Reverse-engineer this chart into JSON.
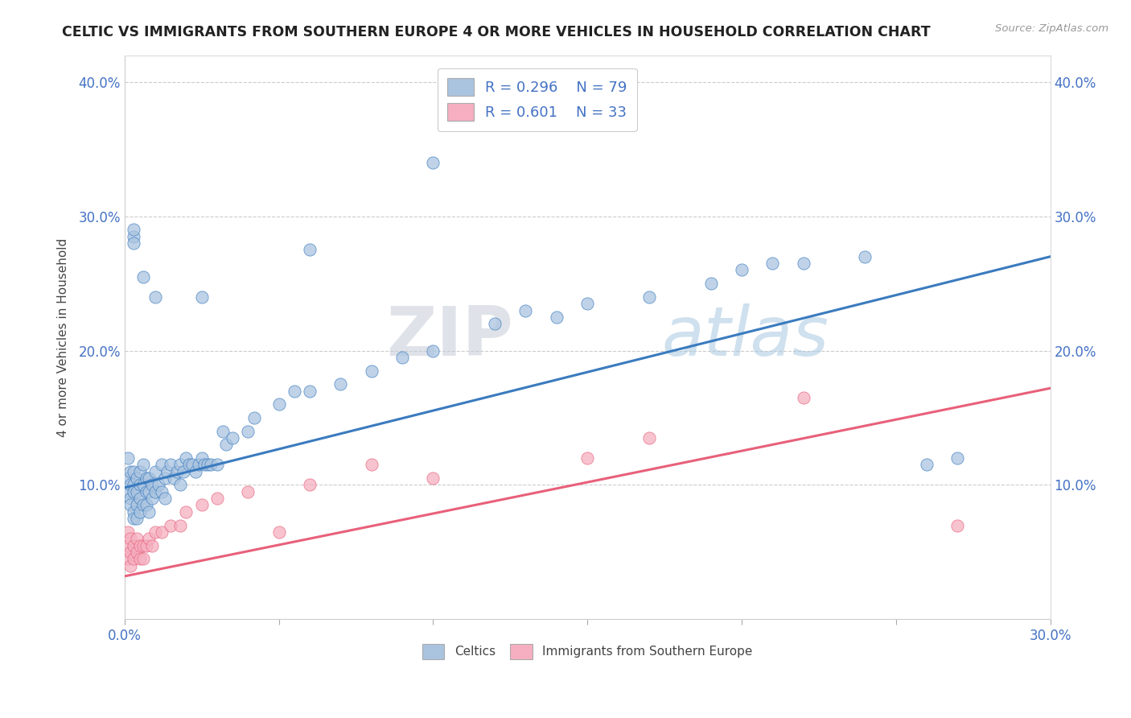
{
  "title": "CELTIC VS IMMIGRANTS FROM SOUTHERN EUROPE 4 OR MORE VEHICLES IN HOUSEHOLD CORRELATION CHART",
  "source": "Source: ZipAtlas.com",
  "ylabel": "4 or more Vehicles in Household",
  "xmin": 0.0,
  "xmax": 0.3,
  "ymin": 0.0,
  "ymax": 0.42,
  "celtics_color": "#aac4e0",
  "immigrants_color": "#f5afc0",
  "celtics_line_color": "#3a7bbf",
  "immigrants_line_color": "#e8607a",
  "watermark_zip": "ZIP",
  "watermark_atlas": "atlas",
  "legend_label_1": "Celtics",
  "legend_label_2": "Immigrants from Southern Europe",
  "celtics_x": [
    0.001,
    0.001,
    0.001,
    0.002,
    0.002,
    0.002,
    0.002,
    0.003,
    0.003,
    0.003,
    0.003,
    0.003,
    0.004,
    0.004,
    0.004,
    0.004,
    0.005,
    0.005,
    0.005,
    0.005,
    0.006,
    0.006,
    0.006,
    0.007,
    0.007,
    0.007,
    0.008,
    0.008,
    0.008,
    0.009,
    0.009,
    0.01,
    0.01,
    0.011,
    0.012,
    0.012,
    0.013,
    0.013,
    0.014,
    0.015,
    0.016,
    0.017,
    0.018,
    0.018,
    0.019,
    0.02,
    0.021,
    0.022,
    0.023,
    0.024,
    0.025,
    0.026,
    0.027,
    0.028,
    0.03,
    0.032,
    0.033,
    0.035,
    0.04,
    0.042,
    0.05,
    0.055,
    0.06,
    0.07,
    0.08,
    0.09,
    0.1,
    0.12,
    0.13,
    0.14,
    0.15,
    0.17,
    0.19,
    0.2,
    0.21,
    0.22,
    0.24,
    0.26,
    0.27
  ],
  "celtics_y": [
    0.12,
    0.105,
    0.095,
    0.11,
    0.1,
    0.09,
    0.085,
    0.11,
    0.1,
    0.095,
    0.08,
    0.075,
    0.105,
    0.095,
    0.085,
    0.075,
    0.11,
    0.1,
    0.09,
    0.08,
    0.115,
    0.1,
    0.085,
    0.105,
    0.095,
    0.085,
    0.105,
    0.095,
    0.08,
    0.1,
    0.09,
    0.11,
    0.095,
    0.1,
    0.115,
    0.095,
    0.105,
    0.09,
    0.11,
    0.115,
    0.105,
    0.11,
    0.115,
    0.1,
    0.11,
    0.12,
    0.115,
    0.115,
    0.11,
    0.115,
    0.12,
    0.115,
    0.115,
    0.115,
    0.115,
    0.14,
    0.13,
    0.135,
    0.14,
    0.15,
    0.16,
    0.17,
    0.17,
    0.175,
    0.185,
    0.195,
    0.2,
    0.22,
    0.23,
    0.225,
    0.235,
    0.24,
    0.25,
    0.26,
    0.265,
    0.265,
    0.27,
    0.115,
    0.12
  ],
  "celtics_outlier_x": [
    0.003,
    0.003,
    0.003,
    0.006,
    0.01,
    0.025,
    0.06,
    0.1
  ],
  "celtics_outlier_y": [
    0.285,
    0.29,
    0.28,
    0.255,
    0.24,
    0.24,
    0.275,
    0.34
  ],
  "immigrants_x": [
    0.001,
    0.001,
    0.001,
    0.002,
    0.002,
    0.002,
    0.003,
    0.003,
    0.004,
    0.004,
    0.005,
    0.005,
    0.006,
    0.006,
    0.007,
    0.008,
    0.009,
    0.01,
    0.012,
    0.015,
    0.018,
    0.02,
    0.025,
    0.03,
    0.04,
    0.05,
    0.06,
    0.08,
    0.1,
    0.15,
    0.17,
    0.22,
    0.27
  ],
  "immigrants_y": [
    0.065,
    0.055,
    0.045,
    0.06,
    0.05,
    0.04,
    0.055,
    0.045,
    0.06,
    0.05,
    0.055,
    0.045,
    0.055,
    0.045,
    0.055,
    0.06,
    0.055,
    0.065,
    0.065,
    0.07,
    0.07,
    0.08,
    0.085,
    0.09,
    0.095,
    0.065,
    0.1,
    0.115,
    0.105,
    0.12,
    0.135,
    0.165,
    0.07
  ],
  "celtics_line_x0": 0.0,
  "celtics_line_y0": 0.098,
  "celtics_line_x1": 0.3,
  "celtics_line_y1": 0.27,
  "immigrants_line_x0": 0.0,
  "immigrants_line_y0": 0.032,
  "immigrants_line_x1": 0.3,
  "immigrants_line_y1": 0.172
}
